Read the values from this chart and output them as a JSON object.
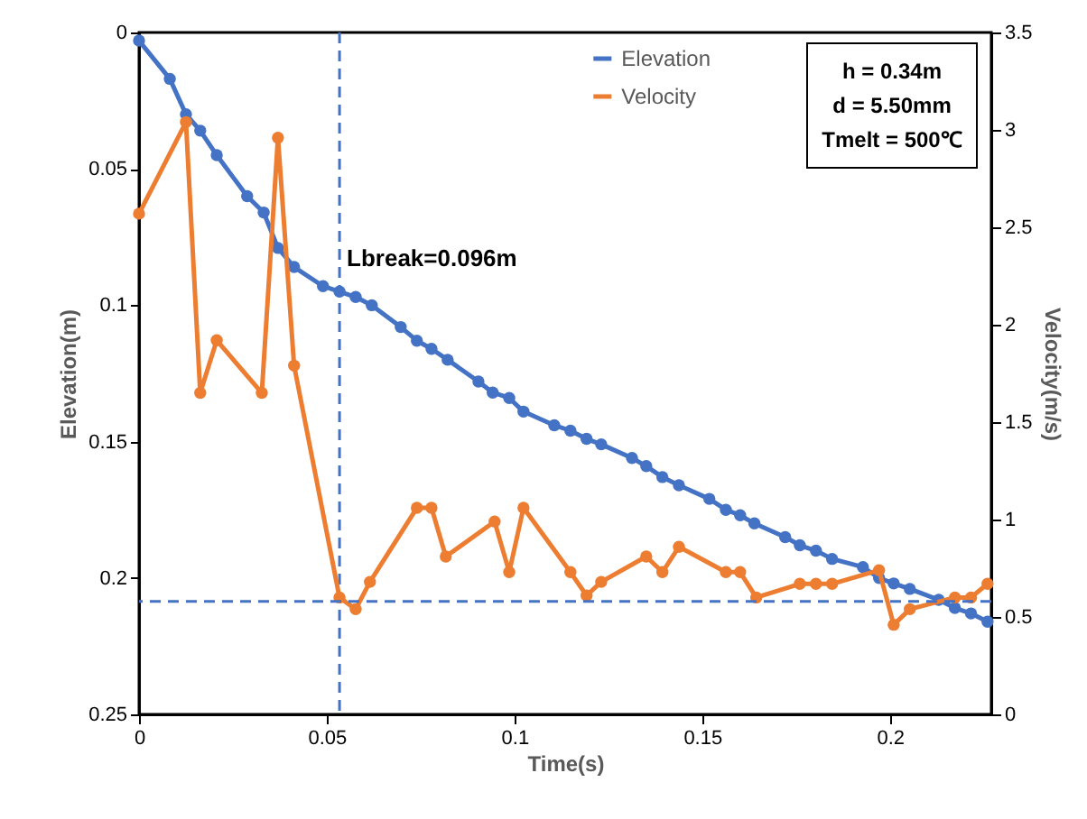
{
  "chart_data": {
    "type": "line",
    "xlabel": "Time(s)",
    "ylabel": "Elevation(m)",
    "y2label": "Velocity(m/s)",
    "xlim": [
      0,
      0.227
    ],
    "xticks": [
      0,
      0.05,
      0.1,
      0.15,
      0.2
    ],
    "ylim": [
      0.25,
      0
    ],
    "yticks": [
      0,
      0.05,
      0.1,
      0.15,
      0.2,
      0.25
    ],
    "y2lim": [
      0,
      3.5
    ],
    "y2ticks": [
      0,
      0.5,
      1,
      1.5,
      2,
      2.5,
      3,
      3.5
    ],
    "grid": false,
    "legend": "top right",
    "marker": "circle",
    "line_style": "solid",
    "series": [
      {
        "name": "Elevation",
        "color": "#4472c4",
        "x": [
          0,
          0.0082,
          0.0125,
          0.0163,
          0.0207,
          0.0288,
          0.0332,
          0.037,
          0.0413,
          0.049,
          0.0534,
          0.0577,
          0.062,
          0.0697,
          0.074,
          0.0779,
          0.0822,
          0.0904,
          0.0942,
          0.0986,
          0.1024,
          0.1106,
          0.1149,
          0.1192,
          0.1231,
          0.1313,
          0.1351,
          0.1394,
          0.1438,
          0.1519,
          0.1563,
          0.1601,
          0.1639,
          0.1721,
          0.176,
          0.1803,
          0.1846,
          0.1928,
          0.1971,
          0.201,
          0.2053,
          0.213,
          0.2173,
          0.2216,
          0.226
        ],
        "values": [
          0.003,
          0.017,
          0.03,
          0.036,
          0.045,
          0.06,
          0.066,
          0.079,
          0.086,
          0.093,
          0.095,
          0.097,
          0.1,
          0.108,
          0.113,
          0.116,
          0.12,
          0.128,
          0.132,
          0.134,
          0.139,
          0.144,
          0.146,
          0.149,
          0.151,
          0.156,
          0.159,
          0.163,
          0.166,
          0.171,
          0.175,
          0.177,
          0.18,
          0.185,
          0.188,
          0.19,
          0.193,
          0.196,
          0.2,
          0.202,
          0.204,
          0.208,
          0.211,
          0.213,
          0.216
        ]
      },
      {
        "name": "Velocity",
        "color": "#ed7d31",
        "axis": "y2",
        "x": [
          0,
          0.0125,
          0.0163,
          0.0207,
          0.0327,
          0.037,
          0.0413,
          0.0534,
          0.0577,
          0.0615,
          0.074,
          0.0779,
          0.0817,
          0.0947,
          0.0986,
          0.1024,
          0.1149,
          0.1192,
          0.1231,
          0.1351,
          0.1394,
          0.1438,
          0.1563,
          0.1601,
          0.1644,
          0.176,
          0.1803,
          0.1846,
          0.1971,
          0.201,
          0.2053,
          0.2173,
          0.2216,
          0.226
        ],
        "values": [
          2.57,
          3.04,
          1.65,
          1.92,
          1.65,
          2.96,
          1.79,
          0.6,
          0.54,
          0.68,
          1.06,
          1.06,
          0.81,
          0.99,
          0.73,
          1.06,
          0.73,
          0.61,
          0.68,
          0.81,
          0.73,
          0.86,
          0.73,
          0.73,
          0.6,
          0.67,
          0.67,
          0.67,
          0.74,
          0.46,
          0.54,
          0.6,
          0.6,
          0.67
        ]
      }
    ],
    "ref_lines": [
      {
        "axis": "x",
        "value": 0.0534,
        "color": "#4472c4",
        "line_style": "dashed"
      },
      {
        "axis": "y2",
        "value": 0.58,
        "color": "#4472c4",
        "line_style": "dashed"
      }
    ],
    "annotations": [
      {
        "text": "Lbreak=0.096m",
        "x": 0.0534,
        "y": 0.083
      },
      "h = 0.34m",
      "d = 5.50mm",
      "Tmelt = 500℃"
    ]
  }
}
